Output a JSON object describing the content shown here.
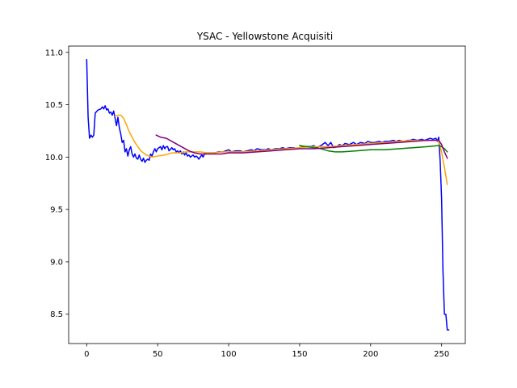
{
  "chart_data": {
    "type": "line",
    "title": "YSAC - Yellowstone Acquisiti",
    "xlabel": "",
    "ylabel": "",
    "xlim": [
      -12.7,
      266.7
    ],
    "ylim": [
      8.22,
      11.06
    ],
    "xticks": [
      0,
      50,
      100,
      150,
      200,
      250
    ],
    "yticks": [
      8.5,
      9.0,
      9.5,
      10.0,
      10.5,
      11.0
    ],
    "ytick_labels": [
      "8.5",
      "9.0",
      "9.5",
      "10.0",
      "10.5",
      "11.0"
    ],
    "grid": false,
    "series": [
      {
        "color": "#0000ff",
        "points": [
          [
            0,
            10.93
          ],
          [
            1,
            10.38
          ],
          [
            2,
            10.18
          ],
          [
            3,
            10.21
          ],
          [
            4,
            10.19
          ],
          [
            5,
            10.21
          ],
          [
            6,
            10.42
          ],
          [
            8,
            10.45
          ],
          [
            10,
            10.46
          ],
          [
            11,
            10.48
          ],
          [
            12,
            10.46
          ],
          [
            13,
            10.49
          ],
          [
            14,
            10.45
          ],
          [
            15,
            10.46
          ],
          [
            16,
            10.42
          ],
          [
            17,
            10.43
          ],
          [
            18,
            10.4
          ],
          [
            19,
            10.44
          ],
          [
            20,
            10.37
          ],
          [
            21,
            10.3
          ],
          [
            22,
            10.38
          ],
          [
            23,
            10.28
          ],
          [
            24,
            10.22
          ],
          [
            25,
            10.14
          ],
          [
            26,
            10.16
          ],
          [
            27,
            10.05
          ],
          [
            28,
            10.08
          ],
          [
            29,
            10.01
          ],
          [
            30,
            10.07
          ],
          [
            31,
            10.1
          ],
          [
            32,
            10.03
          ],
          [
            33,
            10.0
          ],
          [
            34,
            10.03
          ],
          [
            35,
            9.99
          ],
          [
            36,
            9.98
          ],
          [
            37,
            10.02
          ],
          [
            38,
            9.98
          ],
          [
            39,
            9.96
          ],
          [
            40,
            9.99
          ],
          [
            41,
            9.95
          ],
          [
            42,
            9.97
          ],
          [
            43,
            9.98
          ],
          [
            44,
            9.97
          ],
          [
            45,
            10.03
          ],
          [
            46,
            10.01
          ],
          [
            47,
            10.05
          ],
          [
            48,
            10.08
          ],
          [
            49,
            10.05
          ],
          [
            50,
            10.08
          ],
          [
            52,
            10.1
          ],
          [
            53,
            10.07
          ],
          [
            54,
            10.11
          ],
          [
            55,
            10.08
          ],
          [
            56,
            10.1
          ],
          [
            57,
            10.1
          ],
          [
            58,
            10.06
          ],
          [
            60,
            10.09
          ],
          [
            61,
            10.07
          ],
          [
            62,
            10.08
          ],
          [
            63,
            10.05
          ],
          [
            64,
            10.06
          ],
          [
            65,
            10.04
          ],
          [
            66,
            10.06
          ],
          [
            67,
            10.03
          ],
          [
            68,
            10.05
          ],
          [
            69,
            10.02
          ],
          [
            70,
            10.04
          ],
          [
            71,
            10.01
          ],
          [
            72,
            10.02
          ],
          [
            73,
            10.0
          ],
          [
            74,
            10.01
          ],
          [
            75,
            10.02
          ],
          [
            76,
            10.0
          ],
          [
            77,
            10.01
          ],
          [
            78,
            10.0
          ],
          [
            79,
            9.98
          ],
          [
            80,
            10.0
          ],
          [
            81,
            10.02
          ],
          [
            82,
            10.0
          ],
          [
            83,
            10.03
          ],
          [
            85,
            10.04
          ],
          [
            88,
            10.04
          ],
          [
            90,
            10.04
          ],
          [
            93,
            10.05
          ],
          [
            96,
            10.05
          ],
          [
            98,
            10.06
          ],
          [
            100,
            10.07
          ],
          [
            102,
            10.05
          ],
          [
            105,
            10.06
          ],
          [
            108,
            10.06
          ],
          [
            110,
            10.05
          ],
          [
            113,
            10.06
          ],
          [
            116,
            10.07
          ],
          [
            118,
            10.06
          ],
          [
            120,
            10.08
          ],
          [
            123,
            10.07
          ],
          [
            126,
            10.07
          ],
          [
            128,
            10.08
          ],
          [
            130,
            10.07
          ],
          [
            133,
            10.08
          ],
          [
            136,
            10.08
          ],
          [
            138,
            10.09
          ],
          [
            140,
            10.08
          ],
          [
            143,
            10.09
          ],
          [
            146,
            10.09
          ],
          [
            148,
            10.08
          ],
          [
            150,
            10.09
          ],
          [
            153,
            10.1
          ],
          [
            155,
            10.1
          ],
          [
            158,
            10.1
          ],
          [
            160,
            10.11
          ],
          [
            162,
            10.09
          ],
          [
            165,
            10.11
          ],
          [
            168,
            10.14
          ],
          [
            170,
            10.11
          ],
          [
            172,
            10.14
          ],
          [
            174,
            10.09
          ],
          [
            176,
            10.1
          ],
          [
            178,
            10.12
          ],
          [
            180,
            10.11
          ],
          [
            182,
            10.13
          ],
          [
            185,
            10.12
          ],
          [
            188,
            10.14
          ],
          [
            190,
            10.12
          ],
          [
            193,
            10.14
          ],
          [
            196,
            10.13
          ],
          [
            198,
            10.15
          ],
          [
            200,
            10.14
          ],
          [
            203,
            10.14
          ],
          [
            206,
            10.15
          ],
          [
            208,
            10.14
          ],
          [
            210,
            10.15
          ],
          [
            213,
            10.15
          ],
          [
            216,
            10.16
          ],
          [
            218,
            10.15
          ],
          [
            220,
            10.16
          ],
          [
            223,
            10.15
          ],
          [
            226,
            10.16
          ],
          [
            228,
            10.16
          ],
          [
            230,
            10.17
          ],
          [
            233,
            10.16
          ],
          [
            236,
            10.17
          ],
          [
            238,
            10.16
          ],
          [
            240,
            10.17
          ],
          [
            242,
            10.18
          ],
          [
            244,
            10.17
          ],
          [
            246,
            10.18
          ],
          [
            247,
            10.15
          ],
          [
            248,
            10.19
          ],
          [
            249,
            9.96
          ],
          [
            250,
            9.6
          ],
          [
            251,
            8.9
          ],
          [
            252,
            8.5
          ],
          [
            253,
            8.5
          ],
          [
            254,
            8.35
          ],
          [
            255,
            8.35
          ]
        ]
      },
      {
        "color": "#ffa500",
        "points": [
          [
            20,
            10.39
          ],
          [
            22,
            10.4
          ],
          [
            24,
            10.4
          ],
          [
            26,
            10.37
          ],
          [
            28,
            10.31
          ],
          [
            30,
            10.24
          ],
          [
            34,
            10.14
          ],
          [
            38,
            10.06
          ],
          [
            42,
            10.02
          ],
          [
            46,
            10.0
          ],
          [
            50,
            10.01
          ],
          [
            55,
            10.02
          ],
          [
            60,
            10.04
          ],
          [
            65,
            10.04
          ],
          [
            70,
            10.05
          ],
          [
            75,
            10.05
          ],
          [
            80,
            10.05
          ],
          [
            85,
            10.04
          ],
          [
            90,
            10.04
          ],
          [
            95,
            10.05
          ],
          [
            100,
            10.05
          ],
          [
            110,
            10.05
          ],
          [
            120,
            10.06
          ],
          [
            130,
            10.07
          ],
          [
            140,
            10.08
          ],
          [
            150,
            10.09
          ],
          [
            160,
            10.1
          ],
          [
            170,
            10.1
          ],
          [
            180,
            10.11
          ],
          [
            190,
            10.12
          ],
          [
            200,
            10.13
          ],
          [
            210,
            10.14
          ],
          [
            220,
            10.15
          ],
          [
            230,
            10.16
          ],
          [
            240,
            10.16
          ],
          [
            246,
            10.16
          ],
          [
            248,
            10.15
          ],
          [
            250,
            10.05
          ],
          [
            252,
            9.9
          ],
          [
            254,
            9.74
          ]
        ]
      },
      {
        "color": "#008000",
        "points": [
          [
            150,
            10.11
          ],
          [
            155,
            10.1
          ],
          [
            160,
            10.09
          ],
          [
            165,
            10.08
          ],
          [
            170,
            10.06
          ],
          [
            175,
            10.05
          ],
          [
            180,
            10.05
          ],
          [
            190,
            10.06
          ],
          [
            200,
            10.07
          ],
          [
            210,
            10.07
          ],
          [
            220,
            10.08
          ],
          [
            230,
            10.09
          ],
          [
            240,
            10.1
          ],
          [
            248,
            10.11
          ],
          [
            250,
            10.1
          ],
          [
            252,
            10.08
          ],
          [
            254,
            10.05
          ]
        ]
      },
      {
        "color": "#800080",
        "points": [
          [
            49,
            10.21
          ],
          [
            52,
            10.19
          ],
          [
            56,
            10.18
          ],
          [
            60,
            10.15
          ],
          [
            64,
            10.12
          ],
          [
            68,
            10.09
          ],
          [
            72,
            10.06
          ],
          [
            76,
            10.04
          ],
          [
            80,
            10.03
          ],
          [
            85,
            10.03
          ],
          [
            90,
            10.03
          ],
          [
            95,
            10.03
          ],
          [
            100,
            10.04
          ],
          [
            110,
            10.04
          ],
          [
            120,
            10.05
          ],
          [
            130,
            10.06
          ],
          [
            140,
            10.07
          ],
          [
            150,
            10.08
          ],
          [
            160,
            10.08
          ],
          [
            170,
            10.09
          ],
          [
            180,
            10.1
          ],
          [
            190,
            10.11
          ],
          [
            200,
            10.12
          ],
          [
            210,
            10.13
          ],
          [
            220,
            10.14
          ],
          [
            230,
            10.15
          ],
          [
            240,
            10.16
          ],
          [
            248,
            10.16
          ],
          [
            250,
            10.12
          ],
          [
            252,
            10.05
          ],
          [
            254,
            9.99
          ]
        ]
      }
    ]
  }
}
